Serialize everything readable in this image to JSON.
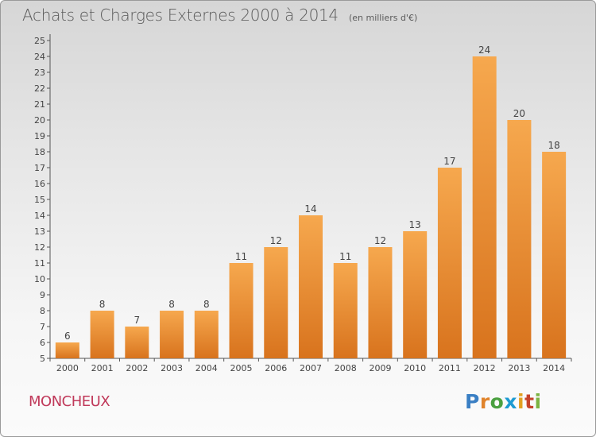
{
  "title": "Achats et Charges Externes 2000 à 2014",
  "unit_note": "(en milliers d'€)",
  "commune": "MONCHEUX",
  "logo": "Proxiti",
  "chart_data": {
    "type": "bar",
    "title": "Achats et Charges Externes 2000 à 2014",
    "subtitle": "(en milliers d'€)",
    "categories": [
      "2000",
      "2001",
      "2002",
      "2003",
      "2004",
      "2005",
      "2006",
      "2007",
      "2008",
      "2009",
      "2010",
      "2011",
      "2012",
      "2013",
      "2014"
    ],
    "values": [
      6,
      8,
      7,
      8,
      8,
      11,
      12,
      14,
      11,
      12,
      13,
      17,
      24,
      20,
      18
    ],
    "data_labels": [
      "6",
      "8",
      "7",
      "8",
      "8",
      "11",
      "12",
      "14",
      "11",
      "12",
      "13",
      "17",
      "24",
      "20",
      "18"
    ],
    "y_ticks": [
      "5",
      "6",
      "7",
      "8",
      "9",
      "10",
      "11",
      "12",
      "13",
      "14",
      "15",
      "16",
      "17",
      "18",
      "19",
      "20",
      "21",
      "22",
      "23",
      "24",
      "25"
    ],
    "ylim": [
      5,
      25
    ],
    "grid": false,
    "colors": {
      "bar_top": "#f6a84e",
      "bar_bottom": "#d8731d",
      "axis": "#555555",
      "label": "#444444"
    }
  }
}
